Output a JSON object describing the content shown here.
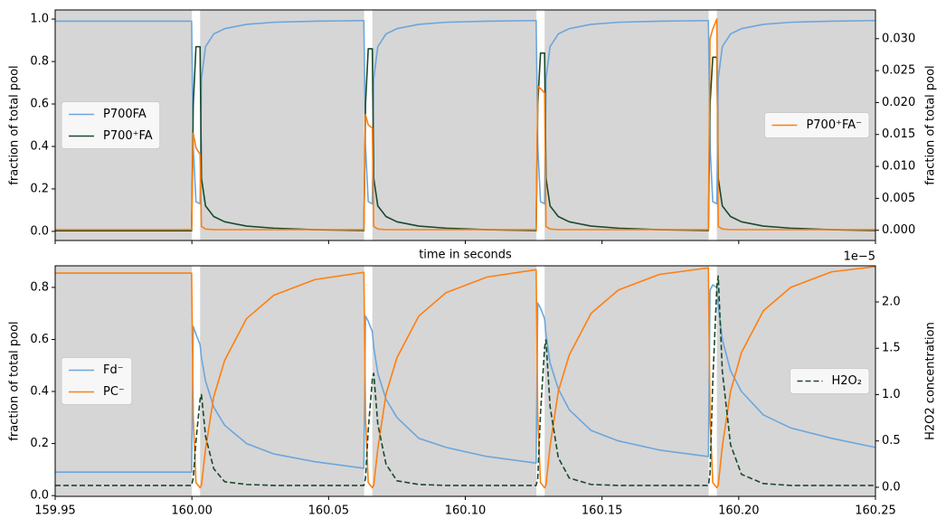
{
  "chart_data": [
    {
      "type": "line",
      "xlabel": "time in seconds",
      "ylabel": "fraction of total pool",
      "y2label": "fraction of total pool",
      "xlim": [
        159.95,
        160.25
      ],
      "xticks": [
        159.95,
        160.0,
        160.05,
        160.1,
        160.15,
        160.2,
        160.25
      ],
      "show_xtick_labels": false,
      "ylim": [
        -0.043,
        1.043
      ],
      "yticks": [
        {
          "value": 0,
          "label": "0.0"
        },
        0.2,
        0.4,
        0.6,
        0.8,
        {
          "value": 1,
          "label": "1.0"
        }
      ],
      "y2lim": [
        -0.0016,
        0.0345
      ],
      "y2ticks": [
        {
          "value": 0,
          "label": "0.000"
        },
        0.005,
        {
          "value": 0.01,
          "label": "0.010"
        },
        0.015,
        {
          "value": 0.02,
          "label": "0.020"
        },
        0.025,
        {
          "value": 0.03,
          "label": "0.030"
        }
      ],
      "shaded_spans": [
        [
          159.95,
          160.0
        ],
        [
          160.003,
          160.063
        ],
        [
          160.066,
          160.126
        ],
        [
          160.129,
          160.189
        ],
        [
          160.192,
          160.25
        ]
      ],
      "shade_color": "#d6d6d6",
      "legend_loc": "center left",
      "legend2_loc": "center right",
      "x": [
        159.95,
        159.9999,
        160.0005,
        160.0015,
        160.003,
        160.0035,
        160.005,
        160.008,
        160.012,
        160.02,
        160.03,
        160.045,
        160.0629,
        160.0635,
        160.0645,
        160.066,
        160.0665,
        160.068,
        160.071,
        160.075,
        160.083,
        160.093,
        160.108,
        160.1259,
        160.1265,
        160.1275,
        160.129,
        160.1295,
        160.131,
        160.134,
        160.138,
        160.146,
        160.156,
        160.171,
        160.1889,
        160.1895,
        160.1905,
        160.192,
        160.1925,
        160.194,
        160.197,
        160.201,
        160.209,
        160.219,
        160.234,
        160.25
      ],
      "series": [
        {
          "name": "P700FA",
          "color": "#6ca6dc",
          "axis": "y",
          "values": [
            0.99,
            0.99,
            0.4,
            0.14,
            0.13,
            0.72,
            0.87,
            0.93,
            0.955,
            0.975,
            0.985,
            0.99,
            0.993,
            0.4,
            0.14,
            0.13,
            0.72,
            0.87,
            0.93,
            0.955,
            0.975,
            0.985,
            0.99,
            0.993,
            0.4,
            0.14,
            0.13,
            0.72,
            0.87,
            0.93,
            0.955,
            0.975,
            0.985,
            0.99,
            0.993,
            0.4,
            0.14,
            0.13,
            0.72,
            0.87,
            0.93,
            0.955,
            0.975,
            0.985,
            0.99,
            0.993
          ]
        },
        {
          "name": "P700⁺FA",
          "color": "#1a4a2c",
          "axis": "y",
          "values": [
            0.003,
            0.003,
            0.6,
            0.87,
            0.87,
            0.25,
            0.12,
            0.07,
            0.045,
            0.025,
            0.015,
            0.008,
            0.004,
            0.6,
            0.86,
            0.86,
            0.25,
            0.12,
            0.07,
            0.045,
            0.025,
            0.015,
            0.008,
            0.004,
            0.6,
            0.84,
            0.84,
            0.25,
            0.12,
            0.07,
            0.045,
            0.025,
            0.015,
            0.008,
            0.004,
            0.6,
            0.82,
            0.82,
            0.25,
            0.12,
            0.07,
            0.045,
            0.025,
            0.015,
            0.008,
            0.004
          ]
        },
        {
          "name": "P700⁺FA⁻",
          "color": "#ff7f0e",
          "axis": "y2",
          "values": [
            0.0001,
            0.0001,
            0.0152,
            0.0129,
            0.0119,
            0.0006,
            0.0002,
            0.0001,
            0.0001,
            0.0001,
            0.0001,
            0.0001,
            0.0001,
            0.0181,
            0.0165,
            0.016,
            0.0006,
            0.0002,
            0.0001,
            0.0001,
            0.0001,
            0.0001,
            0.0001,
            0.0001,
            0.0226,
            0.0222,
            0.0215,
            0.0006,
            0.0002,
            0.0001,
            0.0001,
            0.0001,
            0.0001,
            0.0001,
            0.0001,
            0.03,
            0.0315,
            0.0331,
            0.0006,
            0.0002,
            0.0001,
            0.0001,
            0.0001,
            0.0001,
            0.0001,
            0.0001
          ]
        }
      ]
    },
    {
      "type": "line",
      "ylabel": "fraction of total pool",
      "y2label": "H2O2 concentration",
      "y2_offset": "1e−5",
      "xlim": [
        159.95,
        160.25
      ],
      "xticks": [
        159.95,
        {
          "value": 160.0,
          "label": "160.00"
        },
        160.05,
        {
          "value": 160.1,
          "label": "160.10"
        },
        160.15,
        {
          "value": 160.2,
          "label": "160.20"
        },
        160.25
      ],
      "show_xtick_labels": true,
      "ylim": [
        -0.003,
        0.883
      ],
      "yticks": [
        {
          "value": 0,
          "label": "0.0"
        },
        0.2,
        0.4,
        0.6,
        0.8
      ],
      "y2lim": [
        -0.098,
        2.39
      ],
      "y2ticks": [
        {
          "value": 0,
          "label": "0.0"
        },
        0.5,
        {
          "value": 1,
          "label": "1.0"
        },
        1.5,
        {
          "value": 2,
          "label": "2.0"
        }
      ],
      "shaded_spans": [
        [
          159.95,
          160.0
        ],
        [
          160.003,
          160.063
        ],
        [
          160.066,
          160.126
        ],
        [
          160.129,
          160.189
        ],
        [
          160.192,
          160.25
        ]
      ],
      "shade_color": "#d6d6d6",
      "legend_loc": "center left",
      "legend2_loc": "center right",
      "x": [
        159.95,
        159.9999,
        160.0005,
        160.0015,
        160.003,
        160.0035,
        160.005,
        160.008,
        160.012,
        160.02,
        160.03,
        160.045,
        160.0629,
        160.0635,
        160.0645,
        160.066,
        160.0665,
        160.068,
        160.071,
        160.075,
        160.083,
        160.093,
        160.108,
        160.1259,
        160.1265,
        160.1275,
        160.129,
        160.1295,
        160.131,
        160.134,
        160.138,
        160.146,
        160.156,
        160.171,
        160.1889,
        160.1895,
        160.1905,
        160.192,
        160.1925,
        160.194,
        160.197,
        160.201,
        160.209,
        160.219,
        160.234,
        160.25
      ],
      "series": [
        {
          "name": "Fd⁻",
          "color": "#6ca6dc",
          "axis": "y",
          "values": [
            0.09,
            0.09,
            0.65,
            0.62,
            0.58,
            0.53,
            0.44,
            0.34,
            0.27,
            0.2,
            0.16,
            0.13,
            0.105,
            0.69,
            0.67,
            0.63,
            0.57,
            0.47,
            0.37,
            0.3,
            0.22,
            0.185,
            0.15,
            0.125,
            0.74,
            0.72,
            0.68,
            0.62,
            0.51,
            0.41,
            0.33,
            0.25,
            0.21,
            0.175,
            0.15,
            0.79,
            0.81,
            0.8,
            0.73,
            0.6,
            0.48,
            0.4,
            0.31,
            0.26,
            0.22,
            0.185
          ]
        },
        {
          "name": "PC⁻",
          "color": "#ff7f0e",
          "axis": "y",
          "values": [
            0.855,
            0.855,
            0.3,
            0.05,
            0.03,
            0.04,
            0.18,
            0.38,
            0.52,
            0.68,
            0.77,
            0.83,
            0.858,
            0.3,
            0.05,
            0.03,
            0.04,
            0.18,
            0.39,
            0.53,
            0.69,
            0.78,
            0.84,
            0.868,
            0.3,
            0.05,
            0.03,
            0.04,
            0.19,
            0.4,
            0.54,
            0.7,
            0.79,
            0.85,
            0.875,
            0.3,
            0.05,
            0.03,
            0.04,
            0.19,
            0.4,
            0.55,
            0.71,
            0.8,
            0.86,
            0.88
          ]
        },
        {
          "name": "H2O₂",
          "color": "#1a4a2c",
          "axis": "y2",
          "linestyle": "dashed",
          "values": [
            0.02,
            0.02,
            0.1,
            0.5,
            0.95,
            1.0,
            0.55,
            0.2,
            0.06,
            0.03,
            0.02,
            0.02,
            0.02,
            0.1,
            0.62,
            1.17,
            1.23,
            0.68,
            0.25,
            0.07,
            0.03,
            0.02,
            0.02,
            0.02,
            0.1,
            0.8,
            1.51,
            1.59,
            0.87,
            0.32,
            0.1,
            0.03,
            0.02,
            0.02,
            0.02,
            0.15,
            1.14,
            2.17,
            2.28,
            1.25,
            0.46,
            0.14,
            0.04,
            0.02,
            0.02,
            0.02
          ]
        }
      ]
    }
  ]
}
